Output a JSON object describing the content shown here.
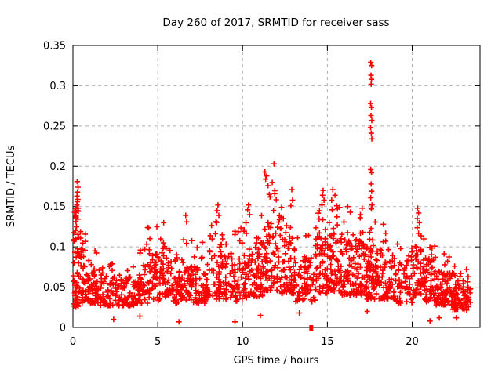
{
  "window": {
    "background": "#ffffff"
  },
  "chart_data": {
    "type": "scatter",
    "title": "Day 260 of 2017, SRMTID for receiver sass",
    "xlabel": "GPS time / hours",
    "ylabel": "SRMTID / TECUs",
    "xlim": [
      0,
      24
    ],
    "ylim": [
      0,
      0.35
    ],
    "xticks": [
      0,
      5,
      10,
      15,
      20
    ],
    "xtick_labels": [
      "0",
      "5",
      "10",
      "15",
      "20"
    ],
    "yticks": [
      0,
      0.05,
      0.1,
      0.15,
      0.2,
      0.25,
      0.3,
      0.35
    ],
    "ytick_labels": [
      "0",
      "0.05",
      "0.1",
      "0.15",
      "0.2",
      "0.25",
      "0.3",
      "0.35"
    ],
    "grid": true,
    "grid_style": "dashed",
    "grid_color": "#b0b0b0",
    "axis_color": "#000000",
    "legend": "none",
    "marker": {
      "shape": "plus",
      "color": "#ff0000",
      "size": 7
    },
    "high_points": [
      [
        17.56,
        0.329
      ],
      [
        17.61,
        0.325
      ],
      [
        17.57,
        0.313
      ],
      [
        17.6,
        0.308
      ],
      [
        17.58,
        0.302
      ],
      [
        17.55,
        0.278
      ],
      [
        17.6,
        0.273
      ],
      [
        17.57,
        0.263
      ],
      [
        17.62,
        0.257
      ],
      [
        17.55,
        0.248
      ],
      [
        17.59,
        0.241
      ],
      [
        17.62,
        0.234
      ],
      [
        17.56,
        0.196
      ],
      [
        17.6,
        0.192
      ],
      [
        17.58,
        0.178
      ],
      [
        17.61,
        0.169
      ],
      [
        17.56,
        0.161
      ],
      [
        17.63,
        0.152
      ],
      [
        17.59,
        0.147
      ],
      [
        11.85,
        0.203
      ],
      [
        11.32,
        0.193
      ],
      [
        11.42,
        0.188
      ],
      [
        11.36,
        0.184
      ],
      [
        11.75,
        0.18
      ],
      [
        11.5,
        0.176
      ],
      [
        11.9,
        0.166
      ],
      [
        11.62,
        0.162
      ],
      [
        0.25,
        0.181
      ],
      [
        0.3,
        0.174
      ],
      [
        0.27,
        0.168
      ],
      [
        0.24,
        0.163
      ],
      [
        0.29,
        0.159
      ],
      [
        0.26,
        0.156
      ],
      [
        0.23,
        0.152
      ],
      [
        0.31,
        0.148
      ],
      [
        0.28,
        0.145
      ],
      [
        12.9,
        0.171
      ],
      [
        12.95,
        0.158
      ],
      [
        12.85,
        0.151
      ],
      [
        12.3,
        0.149
      ],
      [
        14.75,
        0.17
      ],
      [
        14.72,
        0.164
      ],
      [
        14.8,
        0.158
      ],
      [
        14.68,
        0.152
      ],
      [
        15.32,
        0.171
      ],
      [
        15.45,
        0.164
      ],
      [
        15.25,
        0.158
      ],
      [
        15.55,
        0.151
      ],
      [
        15.6,
        0.147
      ],
      [
        20.32,
        0.148
      ],
      [
        20.38,
        0.142
      ],
      [
        20.3,
        0.135
      ],
      [
        20.42,
        0.13
      ],
      [
        10.35,
        0.152
      ],
      [
        10.3,
        0.146
      ],
      [
        10.42,
        0.14
      ],
      [
        8.55,
        0.152
      ],
      [
        8.5,
        0.145
      ],
      [
        8.6,
        0.139
      ],
      [
        6.65,
        0.139
      ],
      [
        6.7,
        0.131
      ],
      [
        16.2,
        0.15
      ],
      [
        16.35,
        0.143
      ],
      [
        17.05,
        0.148
      ],
      [
        16.95,
        0.14
      ],
      [
        5.35,
        0.13
      ],
      [
        4.95,
        0.125
      ],
      [
        18.3,
        0.128
      ],
      [
        1.3,
        0.095
      ],
      [
        22.5,
        0.076
      ],
      [
        23.2,
        0.072
      ]
    ],
    "low_points": [
      [
        2.4,
        0.01
      ],
      [
        3.95,
        0.014
      ],
      [
        6.25,
        0.007
      ],
      [
        9.55,
        0.007
      ],
      [
        11.05,
        0.015
      ],
      [
        13.35,
        0.018
      ],
      [
        17.35,
        0.02
      ],
      [
        21.05,
        0.008
      ],
      [
        21.6,
        0.012
      ],
      [
        22.6,
        0.012
      ]
    ],
    "zero_marker": {
      "x": 14.05,
      "y": 0
    },
    "density_segments": [
      [
        0.0,
        0.35,
        55,
        0.025,
        0.105,
        0.15,
        0.4
      ],
      [
        0.35,
        0.8,
        40,
        0.03,
        0.095,
        0.125,
        0.15
      ],
      [
        0.8,
        1.6,
        55,
        0.03,
        0.07,
        0.095,
        0.12
      ],
      [
        1.6,
        2.6,
        60,
        0.027,
        0.062,
        0.085,
        0.1
      ],
      [
        2.6,
        3.6,
        60,
        0.027,
        0.06,
        0.088,
        0.1
      ],
      [
        3.6,
        4.4,
        55,
        0.03,
        0.075,
        0.108,
        0.12
      ],
      [
        4.4,
        5.1,
        50,
        0.033,
        0.085,
        0.125,
        0.14
      ],
      [
        5.1,
        5.8,
        50,
        0.033,
        0.085,
        0.128,
        0.12
      ],
      [
        5.8,
        6.4,
        45,
        0.03,
        0.072,
        0.095,
        0.1
      ],
      [
        6.4,
        7.1,
        50,
        0.033,
        0.085,
        0.125,
        0.12
      ],
      [
        7.1,
        7.9,
        55,
        0.03,
        0.078,
        0.112,
        0.12
      ],
      [
        7.9,
        8.8,
        65,
        0.035,
        0.095,
        0.135,
        0.14
      ],
      [
        8.8,
        9.8,
        60,
        0.032,
        0.085,
        0.12,
        0.12
      ],
      [
        9.8,
        10.6,
        55,
        0.035,
        0.095,
        0.135,
        0.13
      ],
      [
        10.6,
        11.3,
        55,
        0.038,
        0.105,
        0.15,
        0.14
      ],
      [
        11.3,
        12.3,
        75,
        0.045,
        0.125,
        0.175,
        0.16
      ],
      [
        12.3,
        13.1,
        65,
        0.042,
        0.11,
        0.148,
        0.14
      ],
      [
        13.1,
        14.3,
        70,
        0.032,
        0.085,
        0.118,
        0.12
      ],
      [
        14.3,
        15.0,
        60,
        0.042,
        0.11,
        0.15,
        0.14
      ],
      [
        15.0,
        15.8,
        65,
        0.045,
        0.115,
        0.155,
        0.15
      ],
      [
        15.8,
        16.6,
        65,
        0.04,
        0.105,
        0.14,
        0.13
      ],
      [
        16.6,
        17.3,
        60,
        0.04,
        0.105,
        0.14,
        0.13
      ],
      [
        17.3,
        17.9,
        70,
        0.035,
        0.1,
        0.14,
        0.13
      ],
      [
        17.9,
        19.0,
        75,
        0.035,
        0.09,
        0.12,
        0.12
      ],
      [
        19.0,
        20.1,
        60,
        0.03,
        0.08,
        0.105,
        0.11
      ],
      [
        20.1,
        20.6,
        40,
        0.04,
        0.095,
        0.128,
        0.13
      ],
      [
        20.6,
        21.4,
        65,
        0.032,
        0.085,
        0.11,
        0.11
      ],
      [
        21.4,
        22.3,
        75,
        0.028,
        0.07,
        0.092,
        0.1
      ],
      [
        22.3,
        23.0,
        60,
        0.022,
        0.052,
        0.072,
        0.1
      ],
      [
        23.0,
        23.45,
        35,
        0.02,
        0.048,
        0.065,
        0.1
      ]
    ]
  }
}
